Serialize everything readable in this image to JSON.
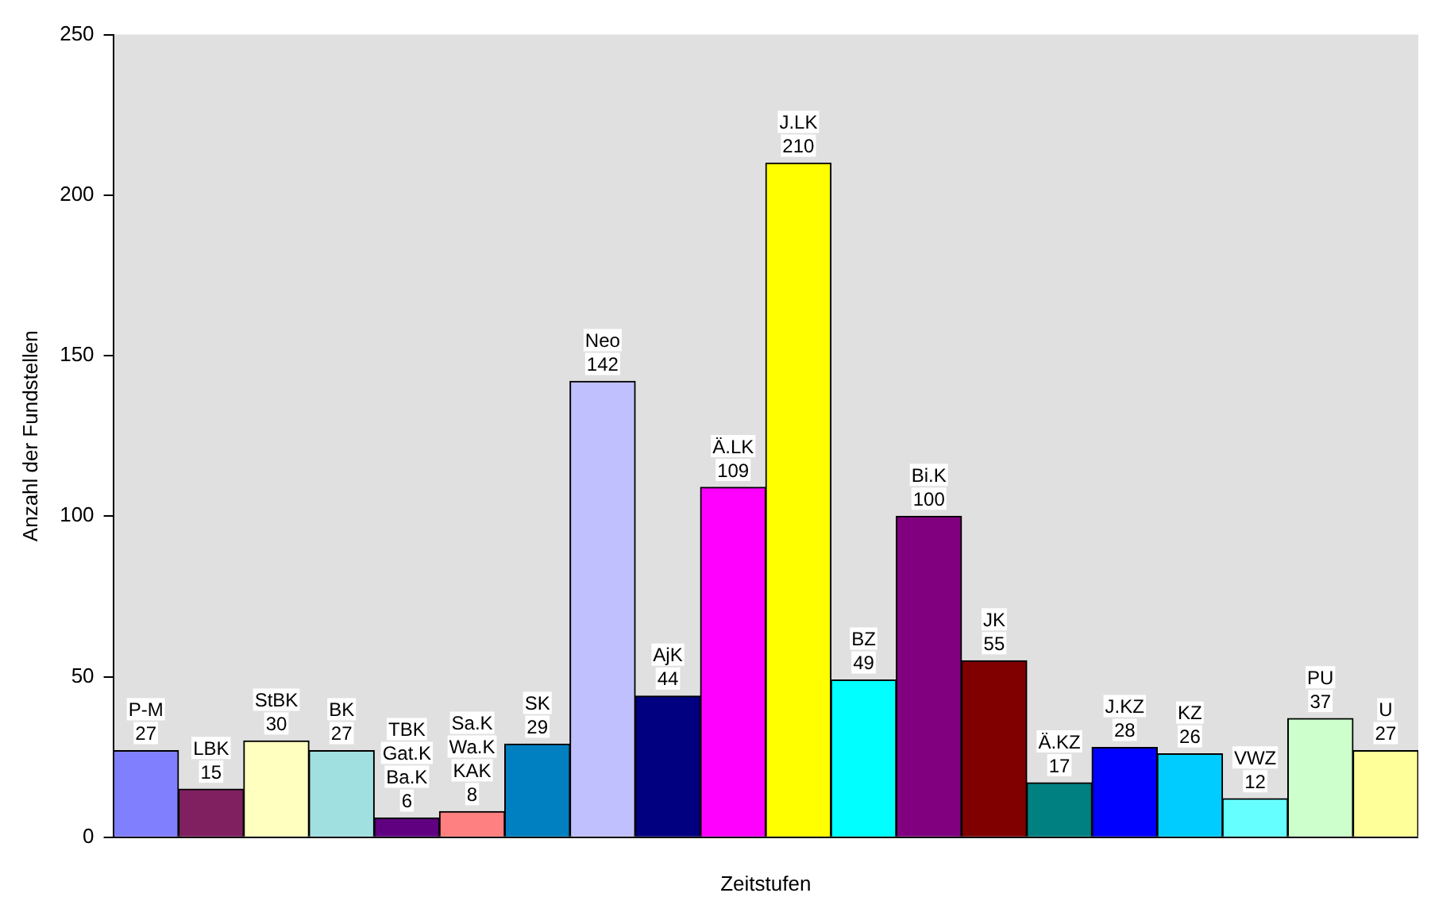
{
  "chart_data": {
    "type": "bar",
    "xlabel": "Zeitstufen",
    "ylabel": "Anzahl der Fundstellen",
    "categories": [
      "P-M",
      "LBK",
      "StBK",
      "BK",
      "TBK Gat.K Ba.K",
      "Sa.K Wa.K KAK",
      "SK",
      "Neo",
      "AjK",
      "Ä.LK",
      "J.LK",
      "BZ",
      "Bi.K",
      "JK",
      "Ä.KZ",
      "J.KZ",
      "KZ",
      "VWZ",
      "PU",
      "U"
    ],
    "values": [
      27,
      15,
      30,
      27,
      6,
      8,
      29,
      142,
      44,
      109,
      210,
      49,
      100,
      55,
      17,
      28,
      26,
      12,
      37,
      27
    ],
    "colors": [
      "#8080ff",
      "#802060",
      "#ffffc0",
      "#a0e0e0",
      "#600080",
      "#ff8080",
      "#0080c0",
      "#c0c0ff",
      "#000080",
      "#ff00ff",
      "#ffff00",
      "#00ffff",
      "#800080",
      "#800000",
      "#008080",
      "#0000ff",
      "#00ccff",
      "#66ffff",
      "#ccffcc",
      "#ffff99"
    ],
    "ylim": [
      0,
      250
    ],
    "yticks": [
      0,
      50,
      100,
      150,
      200,
      250
    ],
    "grid": false,
    "legend": false,
    "data_labels": true,
    "tick_labels": "y"
  }
}
